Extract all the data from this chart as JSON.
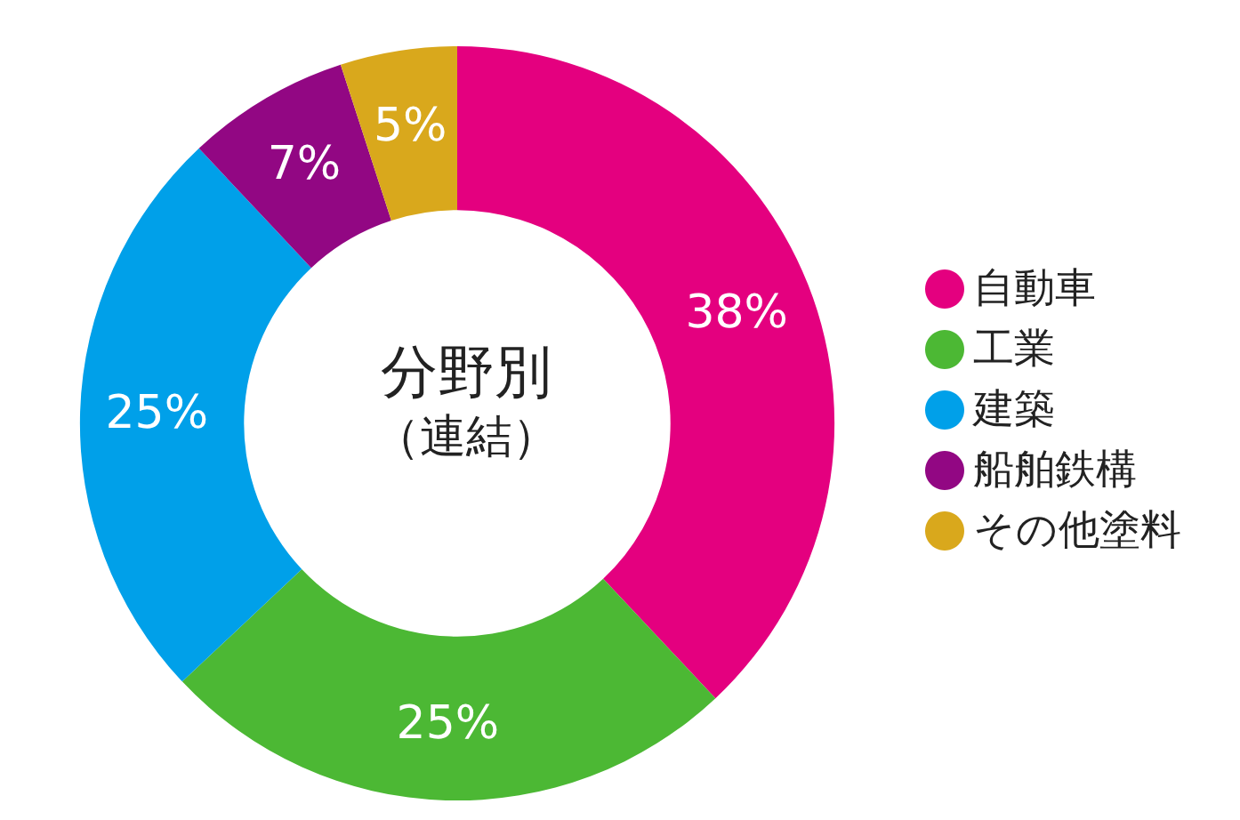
{
  "chart_data": {
    "type": "donut",
    "title": "分野別",
    "subtitle": "（連結）",
    "categories": [
      "自動車",
      "工業",
      "建築",
      "船舶鉄構",
      "その他塗料"
    ],
    "values": [
      38,
      25,
      25,
      7,
      5
    ],
    "colors": [
      "#e4007f",
      "#4cb834",
      "#00a0e9",
      "#920783",
      "#d9a81c"
    ],
    "value_labels": [
      "38%",
      "25%",
      "25%",
      "7%",
      "5%"
    ],
    "legend": "right"
  }
}
